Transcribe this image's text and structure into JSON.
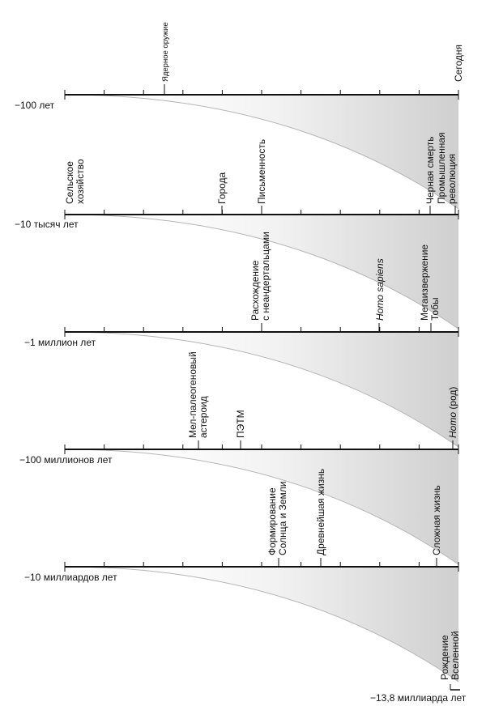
{
  "rows": [
    {
      "scale_label": "−100 лет",
      "events": [
        {
          "text": [
            "Ядерное оружие"
          ],
          "small": true
        },
        {
          "text": [
            "Сегодня"
          ]
        }
      ]
    },
    {
      "scale_label": "−10 тысяч лет",
      "events": [
        {
          "text": [
            "Сельское",
            "хозяйство"
          ]
        },
        {
          "text": [
            "Города"
          ]
        },
        {
          "text": [
            "Письменность"
          ]
        },
        {
          "text": [
            "Черная смерть"
          ]
        },
        {
          "text": [
            "Промышленная",
            "революция"
          ]
        }
      ]
    },
    {
      "scale_label": "−1 миллион лет",
      "events": [
        {
          "text": [
            "Расхождение",
            "с неандертальцами"
          ]
        },
        {
          "text": [
            "Homo sapiens"
          ],
          "italic": true
        },
        {
          "text": [
            "Мегаизвержение",
            "Тобы"
          ]
        }
      ]
    },
    {
      "scale_label": "−100 миллионов лет",
      "events": [
        {
          "text": [
            "Мел-палеогеновый",
            "астероид"
          ]
        },
        {
          "text": [
            "ПЭТМ"
          ]
        },
        {
          "text_italic": "Homo",
          "text_rest": " (род)"
        }
      ]
    },
    {
      "scale_label": "−10 миллиардов лет",
      "events": [
        {
          "text": [
            "Формирование",
            "Солнца и Земли"
          ]
        },
        {
          "text": [
            "Древнейшая жизнь"
          ]
        },
        {
          "text": [
            "Сложная жизнь"
          ]
        }
      ]
    },
    {
      "scale_label": "−13,8 миллиарда лет",
      "events": [
        {
          "text": [
            "Рождение",
            "Вселенной"
          ]
        }
      ]
    }
  ]
}
